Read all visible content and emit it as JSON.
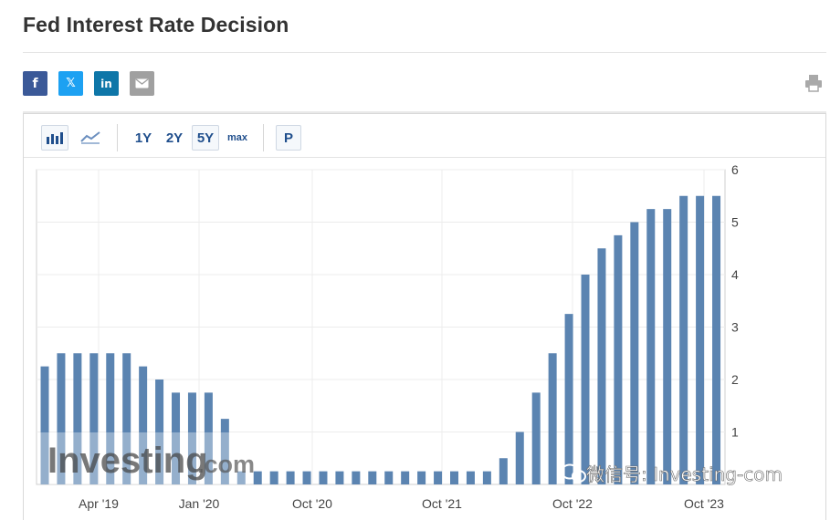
{
  "header": {
    "title": "Fed Interest Rate Decision"
  },
  "share": {
    "facebook_glyph": "f",
    "twitter_glyph": "𝕏",
    "linkedin_glyph": "in",
    "icons": [
      "facebook-icon",
      "twitter-icon",
      "linkedin-icon",
      "email-icon"
    ]
  },
  "toolbar": {
    "ranges": [
      "1Y",
      "2Y",
      "5Y",
      "max"
    ],
    "selected_range": "5Y",
    "p_label": "P"
  },
  "watermark": {
    "brand": "Investing",
    "brand_suffix": ".com",
    "wechat_text": "微信号: Investing-com"
  },
  "colors": {
    "bar": "#5b84b1",
    "grid": "#ececec",
    "brand_blue": "#1f4e8c"
  },
  "chart_data": {
    "type": "bar",
    "title": "",
    "xlabel": "",
    "ylabel": "",
    "ylim": [
      0,
      6
    ],
    "yticks": [
      "6",
      "5",
      "4",
      "3",
      "2",
      "1"
    ],
    "xticks": [
      "Apr '19",
      "Jan '20",
      "Oct '20",
      "Oct '21",
      "Oct '22",
      "Oct '23"
    ],
    "grid": true,
    "axis_side": "right",
    "values": [
      2.25,
      2.5,
      2.5,
      2.5,
      2.5,
      2.5,
      2.25,
      2.0,
      1.75,
      1.75,
      1.75,
      1.25,
      0.25,
      0.25,
      0.25,
      0.25,
      0.25,
      0.25,
      0.25,
      0.25,
      0.25,
      0.25,
      0.25,
      0.25,
      0.25,
      0.25,
      0.25,
      0.25,
      0.5,
      1.0,
      1.75,
      2.5,
      3.25,
      4.0,
      4.5,
      4.75,
      5.0,
      5.25,
      5.25,
      5.5,
      5.5,
      5.5
    ]
  }
}
